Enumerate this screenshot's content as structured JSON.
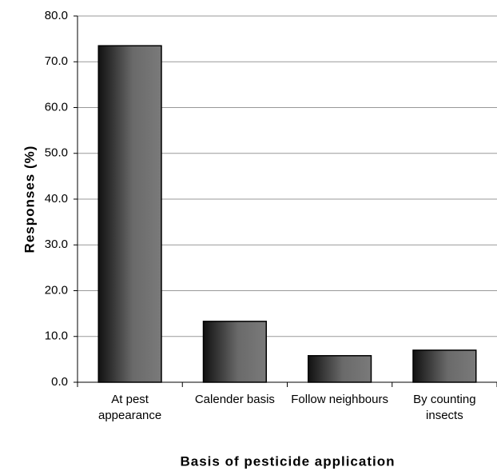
{
  "chart_data": {
    "type": "bar",
    "xlabel": "Basis of pesticide application",
    "ylabel": "Responses (%)",
    "categories": [
      "At pest appearance",
      "Calender basis",
      "Follow neighbours",
      "By counting insects"
    ],
    "values": [
      73.5,
      13.3,
      5.8,
      7.0
    ],
    "ylim": [
      0,
      80
    ],
    "yticks": [
      {
        "value": 0,
        "label": "0.0"
      },
      {
        "value": 10,
        "label": "10.0"
      },
      {
        "value": 20,
        "label": "20.0"
      },
      {
        "value": 30,
        "label": "30.0"
      },
      {
        "value": 40,
        "label": "40.0"
      },
      {
        "value": 50,
        "label": "50.0"
      },
      {
        "value": 60,
        "label": "60.0"
      },
      {
        "value": 70,
        "label": "70.0"
      },
      {
        "value": 80,
        "label": "80.0"
      }
    ],
    "grid": true
  }
}
